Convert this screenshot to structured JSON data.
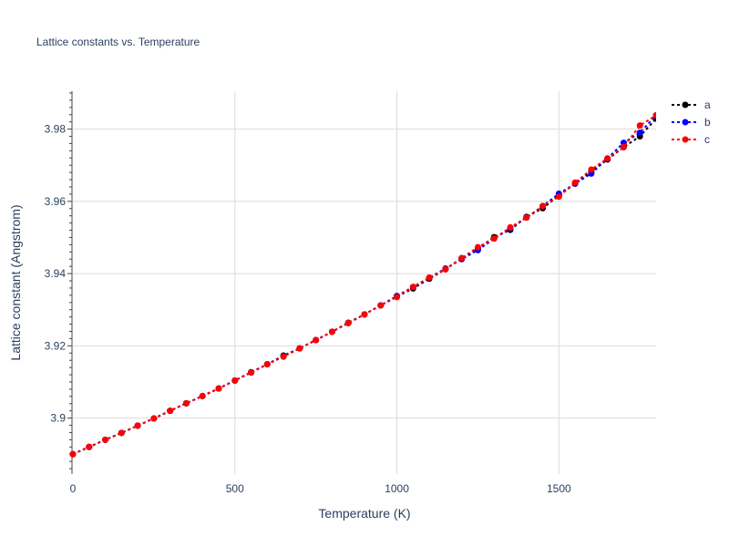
{
  "chart_data": {
    "type": "line",
    "title": "Lattice constants vs. Temperature",
    "xlabel": "Temperature (K)",
    "ylabel": "Lattice constant (Angstrom)",
    "xlim": [
      0,
      1800
    ],
    "ylim": [
      3.8845,
      3.9905
    ],
    "x_ticks": [
      0,
      500,
      1000,
      1500
    ],
    "x_tick_labels": [
      "0",
      "500",
      "1000",
      "1500"
    ],
    "y_ticks": [
      3.9,
      3.92,
      3.94,
      3.96,
      3.98
    ],
    "y_tick_labels": [
      "3.9",
      "3.92",
      "3.94",
      "3.96",
      "3.98"
    ],
    "grid": true,
    "legend_position": "top-right",
    "x": [
      0,
      50,
      100,
      150,
      200,
      250,
      300,
      350,
      400,
      450,
      500,
      550,
      600,
      650,
      700,
      750,
      800,
      850,
      900,
      950,
      1000,
      1050,
      1100,
      1150,
      1200,
      1250,
      1300,
      1350,
      1400,
      1450,
      1500,
      1550,
      1600,
      1650,
      1700,
      1750,
      1800
    ],
    "series": [
      {
        "name": "a",
        "color": "#000000",
        "values": [
          3.89,
          3.892,
          3.894,
          3.8959,
          3.8979,
          3.8999,
          3.902,
          3.9041,
          3.9061,
          3.9082,
          3.9104,
          3.9127,
          3.9149,
          3.9173,
          3.9193,
          3.9216,
          3.9239,
          3.9264,
          3.9287,
          3.9312,
          3.9336,
          3.9359,
          3.9386,
          3.9412,
          3.9442,
          3.9469,
          3.9501,
          3.9521,
          3.9557,
          3.9581,
          3.9616,
          3.9649,
          3.9683,
          3.9716,
          3.975,
          3.978,
          3.9829
        ]
      },
      {
        "name": "b",
        "color": "#0000ff",
        "values": [
          3.89,
          3.892,
          3.894,
          3.8959,
          3.8979,
          3.8999,
          3.902,
          3.9041,
          3.9061,
          3.9082,
          3.9104,
          3.9126,
          3.9149,
          3.9171,
          3.9193,
          3.9216,
          3.9239,
          3.9263,
          3.9287,
          3.9312,
          3.9338,
          3.9363,
          3.9389,
          3.9414,
          3.944,
          3.9465,
          3.9497,
          3.9525,
          3.9555,
          3.9587,
          3.9621,
          3.9649,
          3.9677,
          3.9719,
          3.9762,
          3.979,
          3.9838
        ]
      },
      {
        "name": "c",
        "color": "#ff0000",
        "values": [
          3.89,
          3.892,
          3.894,
          3.8959,
          3.8979,
          3.8999,
          3.902,
          3.9041,
          3.9061,
          3.9082,
          3.9104,
          3.9126,
          3.9149,
          3.917,
          3.9193,
          3.9216,
          3.9239,
          3.9263,
          3.9287,
          3.9312,
          3.9335,
          3.9363,
          3.9389,
          3.9412,
          3.9443,
          3.9473,
          3.9497,
          3.9528,
          3.9555,
          3.9587,
          3.9613,
          3.9652,
          3.9688,
          3.9719,
          3.975,
          3.981,
          3.9838
        ]
      }
    ]
  }
}
